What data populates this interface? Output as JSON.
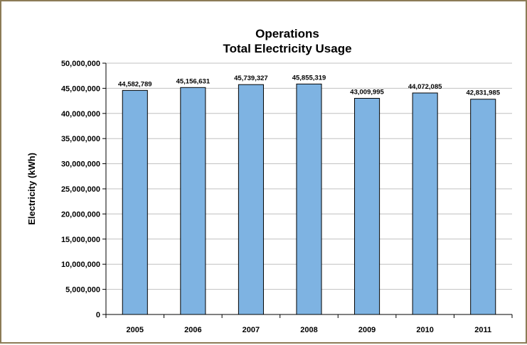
{
  "chart_data": {
    "type": "bar",
    "title": [
      "Operations",
      "Total Electricity Usage"
    ],
    "xlabel": "",
    "ylabel": "Electricity (kWh)",
    "categories": [
      "2005",
      "2006",
      "2007",
      "2008",
      "2009",
      "2010",
      "2011"
    ],
    "values": [
      44582789,
      45156631,
      45739327,
      45855319,
      43009995,
      44072085,
      42831985
    ],
    "data_labels": [
      "44,582,789",
      "45,156,631",
      "45,739,327",
      "45,855,319",
      "43,009,995",
      "44,072,085",
      "42,831,985"
    ],
    "ylim": [
      0,
      50000000
    ],
    "yticks": [
      0,
      5000000,
      10000000,
      15000000,
      20000000,
      25000000,
      30000000,
      35000000,
      40000000,
      45000000,
      50000000
    ],
    "ytick_labels": [
      "0",
      "5,000,000",
      "10,000,000",
      "15,000,000",
      "20,000,000",
      "25,000,000",
      "30,000,000",
      "35,000,000",
      "40,000,000",
      "45,000,000",
      "50,000,000"
    ],
    "grid": true,
    "legend": "none",
    "colors": {
      "bar_fill": "#7eb3e2",
      "bar_stroke": "#000000",
      "grid": "#c0c0c0",
      "frame_border": "#8c7b56"
    }
  }
}
